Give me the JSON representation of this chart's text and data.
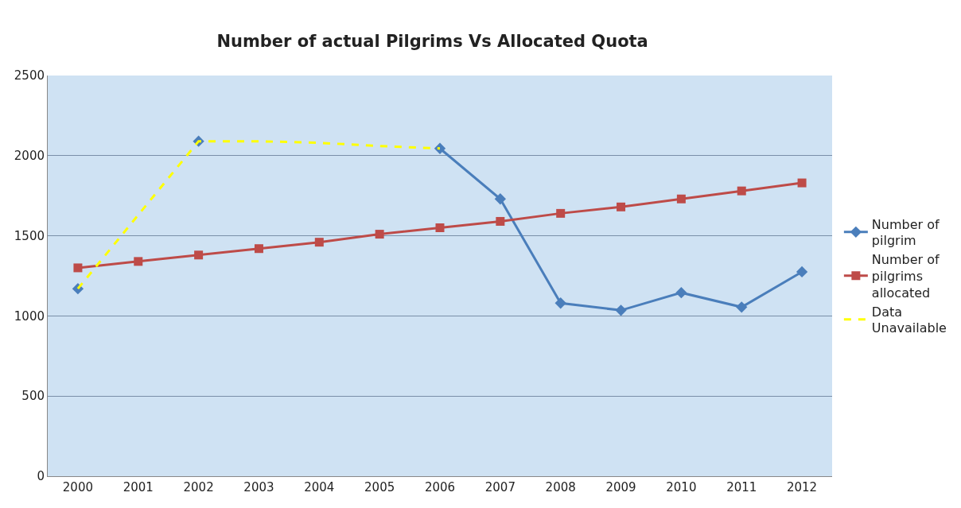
{
  "chart_data": {
    "type": "line",
    "title": "Number of actual Pilgrims Vs Allocated Quota",
    "categories": [
      "2000",
      "2001",
      "2002",
      "2003",
      "2004",
      "2005",
      "2006",
      "2007",
      "2008",
      "2009",
      "2010",
      "2011",
      "2012"
    ],
    "series": [
      {
        "name": "Data Unavailable",
        "color": "#ffff00",
        "marker": "none",
        "line_style": "dashed",
        "values": [
          1170,
          1630,
          2090,
          2090,
          2080,
          2060,
          2045,
          null,
          null,
          null,
          null,
          null,
          null
        ]
      },
      {
        "name": "Number of pilgrim",
        "color": "#4a7ebb",
        "marker": "diamond",
        "line_style": "solid",
        "values": [
          1170,
          null,
          2090,
          null,
          null,
          null,
          2045,
          1730,
          1080,
          1035,
          1145,
          1055,
          1275
        ]
      },
      {
        "name": "Number of pilgrims allocated",
        "color": "#be4b48",
        "marker": "square",
        "line_style": "solid",
        "values": [
          1300,
          1340,
          1380,
          1420,
          1460,
          1510,
          1550,
          1590,
          1640,
          1680,
          1730,
          1780,
          1830
        ]
      }
    ],
    "ylim": [
      0,
      2500
    ],
    "yticks": [
      0,
      500,
      1000,
      1500,
      2000,
      2500
    ],
    "grid": "y",
    "legend": "right"
  }
}
